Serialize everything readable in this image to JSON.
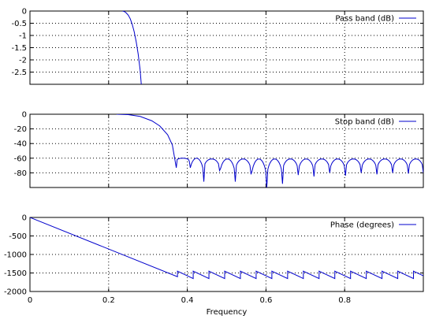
{
  "chart_data": [
    {
      "type": "line",
      "title": "",
      "xlabel": "",
      "ylabel": "",
      "xlim": [
        0,
        1
      ],
      "ylim": [
        -3,
        0
      ],
      "yticks": [
        "0",
        "-0.5",
        "-1",
        "-1.5",
        "-2",
        "-2.5"
      ],
      "ytick_values": [
        0,
        -0.5,
        -1,
        -1.5,
        -2,
        -2.5
      ],
      "xticks": [
        0,
        0.2,
        0.4,
        0.6,
        0.8
      ],
      "grid": true,
      "legend_position": "top-right",
      "series": [
        {
          "name": "Pass band (dB)",
          "color": "#0000cc",
          "x": [
            0.235,
            0.24,
            0.245,
            0.25,
            0.255,
            0.26,
            0.265,
            0.27,
            0.275,
            0.28,
            0.283
          ],
          "y": [
            0,
            -0.02,
            -0.08,
            -0.17,
            -0.32,
            -0.55,
            -0.85,
            -1.25,
            -1.75,
            -2.4,
            -3.0
          ]
        }
      ]
    },
    {
      "type": "line",
      "title": "",
      "xlabel": "",
      "ylabel": "",
      "xlim": [
        0,
        1
      ],
      "ylim": [
        -100,
        0
      ],
      "yticks": [
        "0",
        "-20",
        "-40",
        "-60",
        "-80"
      ],
      "ytick_values": [
        0,
        -20,
        -40,
        -60,
        -80
      ],
      "xticks": [
        0,
        0.2,
        0.4,
        0.6,
        0.8
      ],
      "grid": true,
      "legend_position": "top-right",
      "series": [
        {
          "name": "Stop band (dB)",
          "color": "#0000cc",
          "passband_edge": 0.22,
          "rolloff": [
            [
              0.22,
              0
            ],
            [
              0.25,
              -0.5
            ],
            [
              0.28,
              -3
            ],
            [
              0.31,
              -9
            ],
            [
              0.33,
              -16
            ],
            [
              0.35,
              -28
            ],
            [
              0.362,
              -42
            ],
            [
              0.372,
              -73
            ]
          ],
          "lobes": [
            [
              0.372,
              0.405,
              -60,
              -64
            ],
            [
              0.405,
              0.442,
              -60,
              -92
            ],
            [
              0.442,
              0.482,
              -61,
              -77
            ],
            [
              0.482,
              0.522,
              -61,
              -92
            ],
            [
              0.522,
              0.562,
              -61,
              -82
            ],
            [
              0.562,
              0.602,
              -61,
              -100
            ],
            [
              0.602,
              0.642,
              -61,
              -95
            ],
            [
              0.642,
              0.682,
              -61,
              -83
            ],
            [
              0.682,
              0.722,
              -61,
              -85
            ],
            [
              0.722,
              0.762,
              -61,
              -80
            ],
            [
              0.762,
              0.802,
              -61,
              -84
            ],
            [
              0.802,
              0.842,
              -61,
              -80
            ],
            [
              0.842,
              0.882,
              -61,
              -82
            ],
            [
              0.882,
              0.922,
              -61,
              -80
            ],
            [
              0.922,
              0.962,
              -61,
              -81
            ],
            [
              0.962,
              1.0,
              -61,
              -80
            ]
          ]
        }
      ]
    },
    {
      "type": "line",
      "title": "",
      "xlabel": "Frequency",
      "ylabel": "",
      "xlim": [
        0,
        1
      ],
      "ylim": [
        -2000,
        0
      ],
      "yticks": [
        "0",
        "-500",
        "-1000",
        "-1500",
        "-2000"
      ],
      "ytick_values": [
        0,
        -500,
        -1000,
        -1500,
        -2000
      ],
      "xticks": [
        0,
        0.2,
        0.4,
        0.6,
        0.8
      ],
      "xtick_labels": [
        "0",
        "0.2",
        "0.4",
        "0.6",
        "0.8"
      ],
      "grid": true,
      "legend_position": "top-right",
      "series": [
        {
          "name": "Phase (degrees)",
          "color": "#0000cc",
          "linear_segment": [
            [
              0,
              0
            ],
            [
              0.375,
              -1600
            ]
          ],
          "sawtooth": {
            "start_x": 0.375,
            "period": 0.04,
            "high": -1450,
            "low": -1650,
            "end_x": 1.0
          }
        }
      ]
    }
  ]
}
